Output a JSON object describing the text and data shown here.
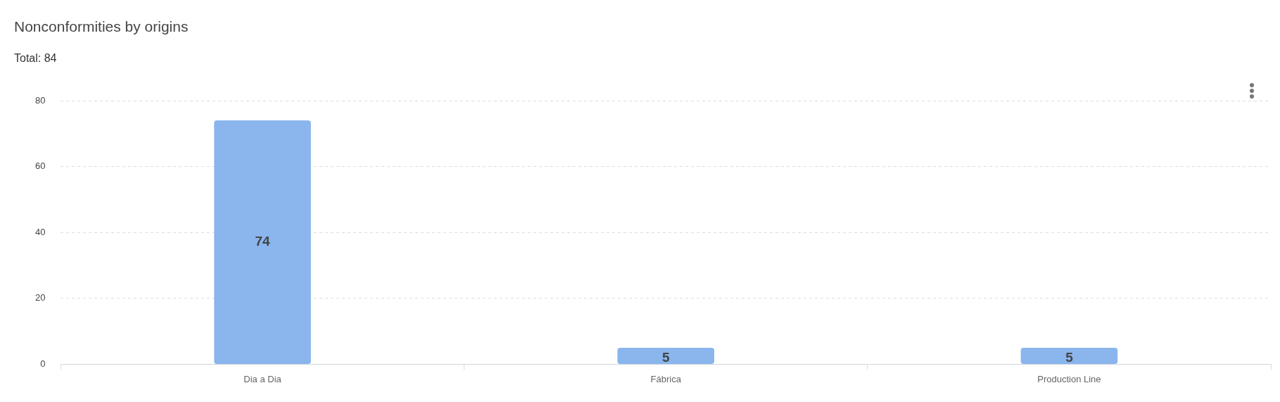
{
  "chart_data": {
    "type": "bar",
    "title": "Nonconformities by origins",
    "subtitle": "Total: 84",
    "categories": [
      "Dia a Dia",
      "Fábrica",
      "Production Line"
    ],
    "values": [
      74,
      5,
      5
    ],
    "color": "#8ab5ed",
    "ylim": [
      0,
      80
    ],
    "yticks": [
      0,
      20,
      40,
      60,
      80
    ],
    "grid": "y",
    "legend": false,
    "data_labels": true
  }
}
